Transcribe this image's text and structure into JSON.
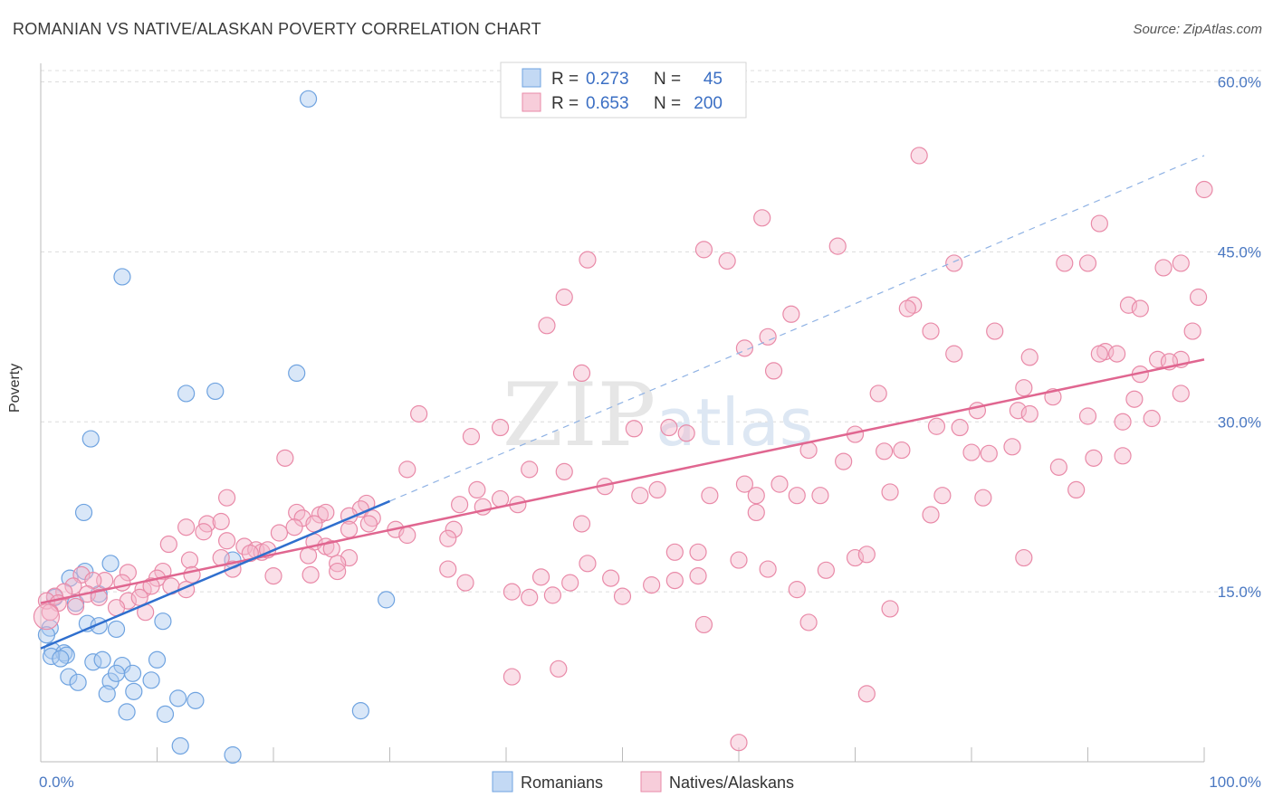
{
  "header": {
    "title": "ROMANIAN VS NATIVE/ALASKAN POVERTY CORRELATION CHART",
    "source": "Source: ZipAtlas.com"
  },
  "chart_data": {
    "type": "scatter",
    "ylabel": "Poverty",
    "x_tick_labels": [
      "0.0%",
      "100.0%"
    ],
    "y_tick_labels": [
      "15.0%",
      "30.0%",
      "45.0%",
      "60.0%"
    ],
    "y_ticks": [
      15,
      30,
      45,
      60
    ],
    "xlim": [
      0,
      100
    ],
    "ylim": [
      0,
      61
    ],
    "grid": true,
    "watermark": "ZIPatlas",
    "legend_stats": [
      {
        "r_label": "R =",
        "r": "0.273",
        "n_label": "N =",
        "n": "45"
      },
      {
        "r_label": "R =",
        "r": "0.653",
        "n_label": "N =",
        "n": "200"
      }
    ],
    "series": [
      {
        "name": "Romanians",
        "color": "#6fa3e0",
        "fill": "#aac9f0",
        "trend": {
          "x0": 0,
          "y0": 10.0,
          "x1": 30,
          "y1": 23.0,
          "dash_to_x": 100,
          "dash_to_y": 53.5
        },
        "points": [
          [
            23,
            58.5
          ],
          [
            7,
            42.8
          ],
          [
            22,
            34.3
          ],
          [
            12.5,
            32.5
          ],
          [
            15,
            32.7
          ],
          [
            4.3,
            28.5
          ],
          [
            3.7,
            22.0
          ],
          [
            16.5,
            17.8
          ],
          [
            6,
            17.5
          ],
          [
            3.8,
            16.8
          ],
          [
            2.5,
            16.2
          ],
          [
            1.2,
            14.5
          ],
          [
            3,
            14.0
          ],
          [
            5,
            14.8
          ],
          [
            4,
            12.2
          ],
          [
            5,
            12.0
          ],
          [
            10.5,
            12.4
          ],
          [
            0.8,
            11.8
          ],
          [
            0.5,
            11.2
          ],
          [
            6.5,
            11.7
          ],
          [
            1,
            9.8
          ],
          [
            2,
            9.6
          ],
          [
            2.2,
            9.4
          ],
          [
            0.9,
            9.3
          ],
          [
            1.7,
            9.1
          ],
          [
            4.5,
            8.8
          ],
          [
            5.3,
            9.0
          ],
          [
            7,
            8.5
          ],
          [
            10,
            9.0
          ],
          [
            2.4,
            7.5
          ],
          [
            3.2,
            7.0
          ],
          [
            6,
            7.1
          ],
          [
            6.5,
            7.8
          ],
          [
            7.9,
            7.8
          ],
          [
            9.5,
            7.2
          ],
          [
            5.7,
            6.0
          ],
          [
            8,
            6.2
          ],
          [
            11.8,
            5.6
          ],
          [
            13.3,
            5.4
          ],
          [
            7.4,
            4.4
          ],
          [
            10.7,
            4.2
          ],
          [
            27.5,
            4.5
          ],
          [
            12,
            1.4
          ],
          [
            16.5,
            0.6
          ],
          [
            29.7,
            14.3
          ]
        ]
      },
      {
        "name": "Natives/Alaskans",
        "color": "#e98aa8",
        "fill": "#f4b8cb",
        "trend": {
          "x0": 0,
          "y0": 14.0,
          "x1": 100,
          "y1": 35.5
        },
        "points": [
          [
            75.5,
            53.5
          ],
          [
            100,
            50.5
          ],
          [
            62,
            48.0
          ],
          [
            91,
            47.5
          ],
          [
            47,
            44.3
          ],
          [
            57,
            45.2
          ],
          [
            59,
            44.2
          ],
          [
            68.5,
            45.5
          ],
          [
            78.5,
            44.0
          ],
          [
            88,
            44.0
          ],
          [
            90,
            44.0
          ],
          [
            98,
            44.0
          ],
          [
            96.5,
            43.6
          ],
          [
            45,
            41.0
          ],
          [
            99.5,
            41.0
          ],
          [
            75,
            40.3
          ],
          [
            74.5,
            40.0
          ],
          [
            93.5,
            40.3
          ],
          [
            94.5,
            40.0
          ],
          [
            64.5,
            39.5
          ],
          [
            43.5,
            38.5
          ],
          [
            82,
            38.0
          ],
          [
            76.5,
            38.0
          ],
          [
            99,
            38.0
          ],
          [
            62.5,
            37.5
          ],
          [
            60.5,
            36.5
          ],
          [
            78.5,
            36.0
          ],
          [
            91.5,
            36.2
          ],
          [
            85,
            35.7
          ],
          [
            91,
            36.0
          ],
          [
            92.5,
            36.0
          ],
          [
            96,
            35.5
          ],
          [
            98,
            35.5
          ],
          [
            97,
            35.3
          ],
          [
            94.5,
            34.2
          ],
          [
            63,
            34.5
          ],
          [
            46.5,
            34.3
          ],
          [
            84.5,
            33.0
          ],
          [
            72,
            32.5
          ],
          [
            94,
            32.0
          ],
          [
            87,
            32.2
          ],
          [
            84,
            31.0
          ],
          [
            80.5,
            31.0
          ],
          [
            85,
            30.7
          ],
          [
            90,
            30.5
          ],
          [
            98,
            32.5
          ],
          [
            32.5,
            30.7
          ],
          [
            39.5,
            29.5
          ],
          [
            51,
            29.4
          ],
          [
            54,
            29.5
          ],
          [
            55.5,
            29.0
          ],
          [
            77,
            29.6
          ],
          [
            79,
            29.5
          ],
          [
            95.5,
            30.3
          ],
          [
            93,
            30.0
          ],
          [
            37,
            28.7
          ],
          [
            70,
            28.9
          ],
          [
            66,
            27.5
          ],
          [
            72.5,
            27.4
          ],
          [
            74.0,
            27.5
          ],
          [
            80,
            27.3
          ],
          [
            81.5,
            27.2
          ],
          [
            83.5,
            27.8
          ],
          [
            93,
            27.0
          ],
          [
            90.5,
            26.8
          ],
          [
            69,
            26.5
          ],
          [
            87.5,
            26.0
          ],
          [
            21,
            26.8
          ],
          [
            31.5,
            25.8
          ],
          [
            42,
            25.8
          ],
          [
            45,
            25.6
          ],
          [
            37.5,
            24.0
          ],
          [
            48.5,
            24.3
          ],
          [
            63.5,
            24.5
          ],
          [
            60.5,
            24.5
          ],
          [
            53,
            24.0
          ],
          [
            51.5,
            23.5
          ],
          [
            57.5,
            23.5
          ],
          [
            61.5,
            23.5
          ],
          [
            65,
            23.5
          ],
          [
            67,
            23.5
          ],
          [
            73,
            23.8
          ],
          [
            77.5,
            23.5
          ],
          [
            81,
            23.3
          ],
          [
            89,
            24.0
          ],
          [
            16,
            23.3
          ],
          [
            39.5,
            23.2
          ],
          [
            41,
            22.7
          ],
          [
            36,
            22.7
          ],
          [
            28,
            22.8
          ],
          [
            27.5,
            22.3
          ],
          [
            38,
            22.5
          ],
          [
            61.5,
            22.0
          ],
          [
            76.5,
            21.8
          ],
          [
            22,
            22.0
          ],
          [
            24,
            21.8
          ],
          [
            22.5,
            21.5
          ],
          [
            24.5,
            22.0
          ],
          [
            26.5,
            21.7
          ],
          [
            28.5,
            21.5
          ],
          [
            28.2,
            21.0
          ],
          [
            14.3,
            21.0
          ],
          [
            15.5,
            21.2
          ],
          [
            12.5,
            20.7
          ],
          [
            21.8,
            20.7
          ],
          [
            23.5,
            21.0
          ],
          [
            26.5,
            20.5
          ],
          [
            30.5,
            20.5
          ],
          [
            31.5,
            20.0
          ],
          [
            20.5,
            20.2
          ],
          [
            14.0,
            20.3
          ],
          [
            35.5,
            20.5
          ],
          [
            35,
            19.7
          ],
          [
            46.5,
            21.0
          ],
          [
            16.0,
            19.5
          ],
          [
            17.5,
            19.0
          ],
          [
            18.5,
            18.7
          ],
          [
            19.0,
            18.5
          ],
          [
            11,
            19.2
          ],
          [
            23.5,
            19.4
          ],
          [
            24.5,
            19.0
          ],
          [
            18,
            18.4
          ],
          [
            25,
            18.8
          ],
          [
            19.5,
            18.7
          ],
          [
            23,
            18.2
          ],
          [
            26.5,
            18.0
          ],
          [
            15.5,
            18.0
          ],
          [
            12.8,
            17.8
          ],
          [
            25.5,
            17.5
          ],
          [
            47,
            17.5
          ],
          [
            60,
            17.8
          ],
          [
            70,
            18.0
          ],
          [
            71,
            18.3
          ],
          [
            84.5,
            18.0
          ],
          [
            54.5,
            18.5
          ],
          [
            56.5,
            18.5
          ],
          [
            35,
            17.0
          ],
          [
            13,
            16.5
          ],
          [
            16.5,
            17.0
          ],
          [
            10.5,
            16.8
          ],
          [
            7.5,
            16.7
          ],
          [
            10,
            16.2
          ],
          [
            20,
            16.4
          ],
          [
            23.2,
            16.5
          ],
          [
            25.5,
            16.8
          ],
          [
            49,
            16.2
          ],
          [
            56.5,
            16.4
          ],
          [
            62.5,
            17.0
          ],
          [
            67.5,
            16.9
          ],
          [
            43,
            16.3
          ],
          [
            5.5,
            16.0
          ],
          [
            7,
            15.8
          ],
          [
            8.8,
            15.2
          ],
          [
            9.5,
            15.5
          ],
          [
            3.5,
            16.5
          ],
          [
            2.8,
            15.5
          ],
          [
            4.5,
            16.0
          ],
          [
            11.2,
            15.5
          ],
          [
            12.5,
            15.2
          ],
          [
            36.5,
            15.8
          ],
          [
            45.5,
            15.8
          ],
          [
            52.5,
            15.6
          ],
          [
            54.5,
            16.0
          ],
          [
            40.5,
            15.0
          ],
          [
            42,
            14.5
          ],
          [
            44,
            14.7
          ],
          [
            50,
            14.6
          ],
          [
            65,
            15.2
          ],
          [
            2,
            15.0
          ],
          [
            1.2,
            14.6
          ],
          [
            4,
            14.8
          ],
          [
            5,
            14.5
          ],
          [
            7.5,
            14.2
          ],
          [
            8.5,
            14.5
          ],
          [
            0.5,
            14.2
          ],
          [
            1.5,
            14.0
          ],
          [
            0.8,
            13.2
          ],
          [
            3,
            13.7
          ],
          [
            6.5,
            13.6
          ],
          [
            9,
            13.2
          ],
          [
            73,
            13.5
          ],
          [
            66,
            12.3
          ],
          [
            57,
            12.1
          ],
          [
            40.5,
            7.5
          ],
          [
            44.5,
            8.2
          ],
          [
            71,
            6.0
          ],
          [
            60,
            1.7
          ],
          [
            0.5,
            12.8
          ]
        ]
      }
    ]
  },
  "legend": {
    "items": [
      {
        "label": "Romanians"
      },
      {
        "label": "Natives/Alaskans"
      }
    ]
  }
}
